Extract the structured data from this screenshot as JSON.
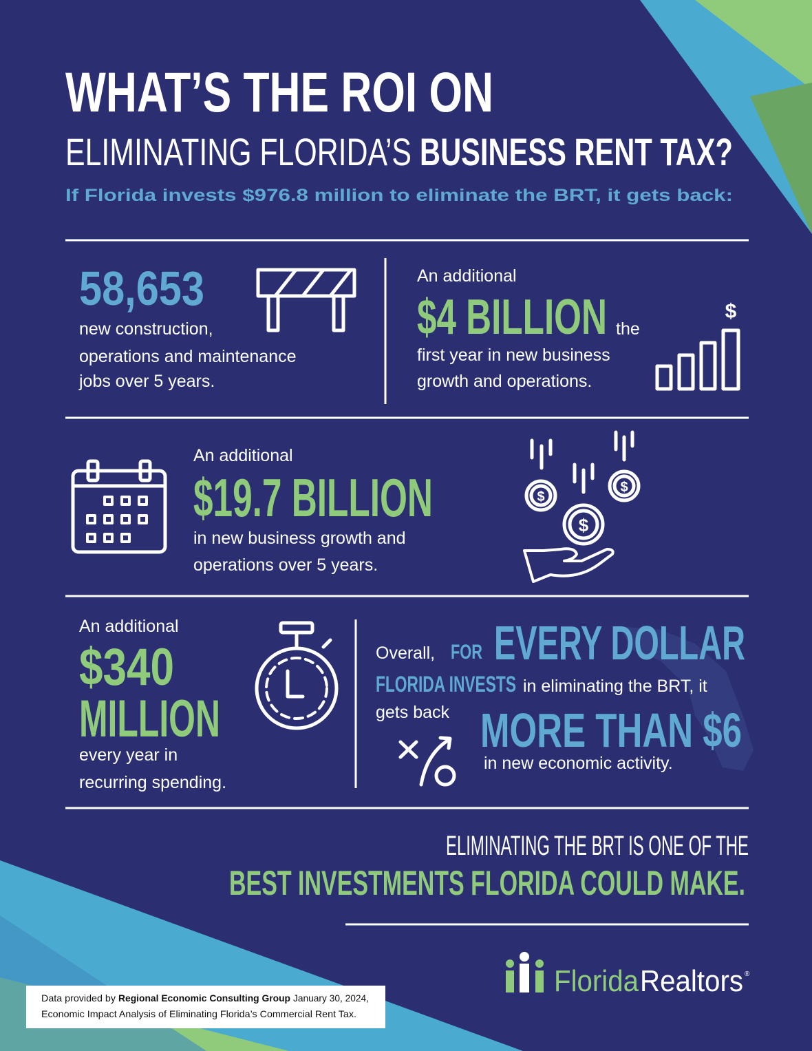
{
  "header": {
    "title_line1": "WHAT’S THE ROI ON",
    "title_line2_light": "ELIMINATING FLORIDA’S",
    "title_line2_bold": "BUSINESS RENT TAX?",
    "subtitle": "If Florida invests $976.8 million to eliminate the BRT, it gets back:"
  },
  "jobs": {
    "number": "58,653",
    "lines": [
      "new construction,",
      "operations and maintenance",
      "jobs over 5 years."
    ]
  },
  "first_year": {
    "intro": "An additional",
    "number": "$4 BILLION",
    "after": "the",
    "lines": [
      "first year in new business",
      "growth and operations."
    ]
  },
  "five_years": {
    "intro": "An additional",
    "number": "$19.7 BILLION",
    "lines": [
      "in new business growth and",
      "operations over 5 years."
    ]
  },
  "recurring": {
    "intro": "An additional",
    "number_line1": "$340",
    "number_line2": "MILLION",
    "lines": [
      "every year in",
      "recurring spending."
    ]
  },
  "roi": {
    "overall": "Overall,",
    "for": "FOR",
    "every_dollar": "EVERY DOLLAR",
    "florida_invests": "FLORIDA INVESTS",
    "eliminating": "in eliminating the BRT, it",
    "gets_back": "gets back",
    "more_than": "MORE THAN $6",
    "activity": "in new economic activity."
  },
  "conclusion": {
    "line1": "ELIMINATING THE BRT IS ONE OF THE",
    "line2": "BEST INVESTMENTS FLORIDA COULD MAKE."
  },
  "logo": {
    "florida": "Florida",
    "realtors": "Realtors",
    "mark": "®"
  },
  "footer": {
    "prefix": "Data provided by",
    "source": "Regional Economic Consulting Group",
    "date": "January 30, 2024,",
    "line2": "Economic Impact Analysis of Eliminating Florida’s Commercial Rent Tax."
  }
}
